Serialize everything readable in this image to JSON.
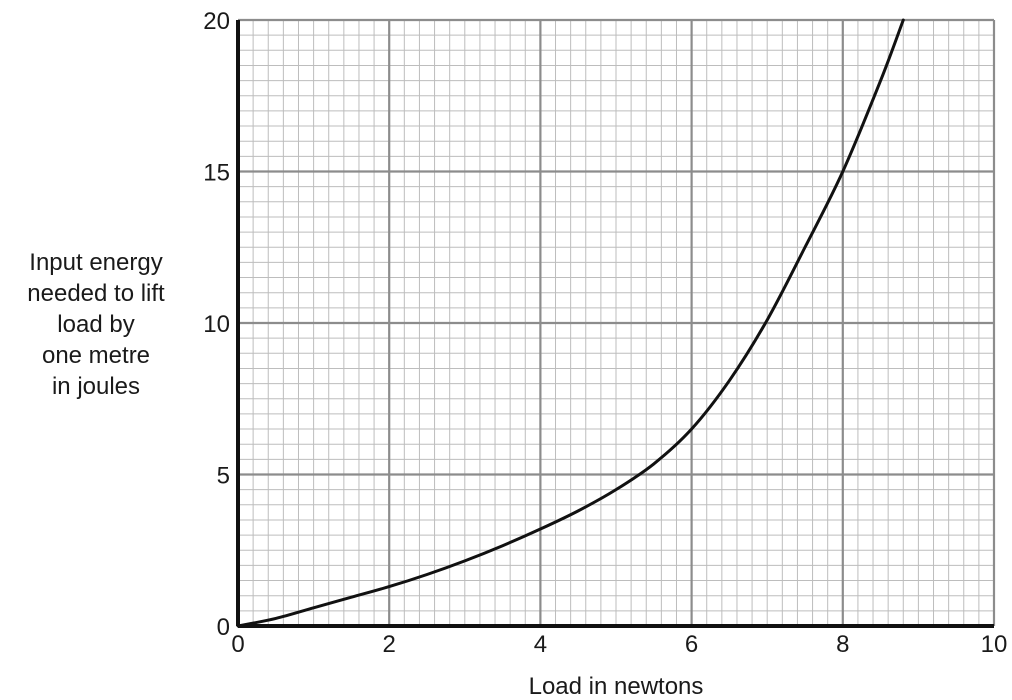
{
  "chart_data": {
    "type": "line",
    "title": "",
    "xlabel": "Load in newtons",
    "ylabel_lines": [
      "Input energy",
      "needed to lift",
      "load by",
      "one metre",
      "in joules"
    ],
    "xlim": [
      0,
      10
    ],
    "ylim": [
      0,
      20
    ],
    "x_ticks": [
      0,
      2,
      4,
      6,
      8,
      10
    ],
    "y_ticks": [
      0,
      5,
      10,
      15,
      20
    ],
    "x_tick_labels": [
      "0",
      "2",
      "4",
      "6",
      "8",
      "10"
    ],
    "y_tick_labels": [
      "0",
      "5",
      "10",
      "15",
      "20"
    ],
    "grid": true,
    "grid_minor_per_major_x": 10,
    "grid_minor_per_major_y": 10,
    "legend": "none",
    "colors": {
      "line": "#111111",
      "major_grid": "#8c8c8c",
      "minor_grid": "#bdbdbd",
      "axis": "#111111"
    },
    "series": [
      {
        "x": [
          0,
          0.5,
          1,
          1.5,
          2,
          2.5,
          3,
          3.5,
          4,
          4.5,
          5,
          5.5,
          6,
          6.5,
          7,
          7.5,
          8,
          8.5,
          8.8
        ],
        "y": [
          0,
          0.25,
          0.6,
          0.95,
          1.3,
          1.7,
          2.15,
          2.65,
          3.2,
          3.8,
          4.5,
          5.35,
          6.5,
          8.1,
          10.1,
          12.5,
          15.0,
          18.0,
          20.0
        ]
      }
    ]
  }
}
